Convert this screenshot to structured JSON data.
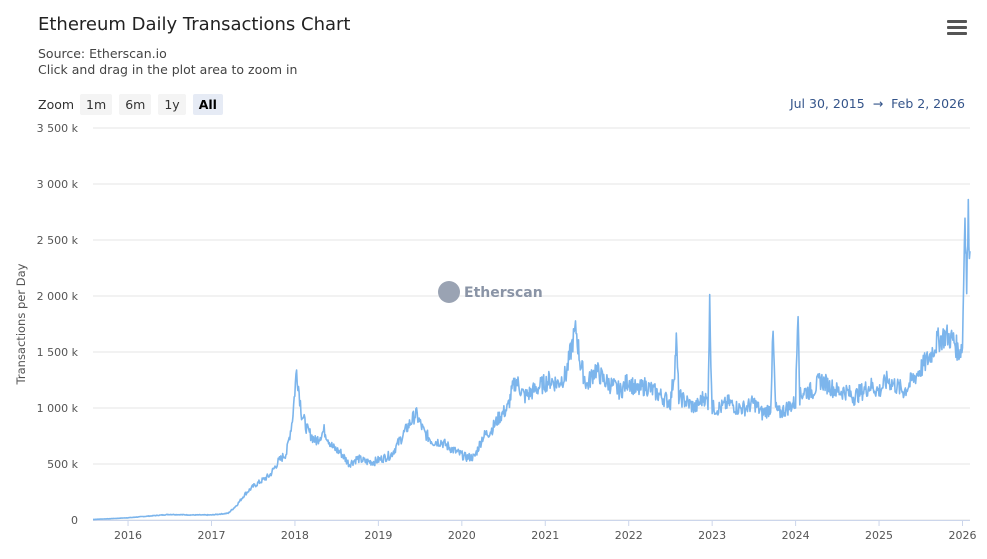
{
  "header": {
    "title": "Ethereum Daily Transactions Chart",
    "source": "Source: Etherscan.io",
    "hint": "Click and drag in the plot area to zoom in"
  },
  "zoom": {
    "label": "Zoom",
    "buttons": [
      "1m",
      "6m",
      "1y",
      "All"
    ],
    "active": "All"
  },
  "range": {
    "from": "Jul 30, 2015",
    "arrow": "→",
    "to": "Feb 2, 2026"
  },
  "watermark": "Etherscan",
  "colors": {
    "series": "#7cb5ec",
    "grid": "#e6e6e6",
    "accent": "#34548a"
  },
  "chart_data": {
    "type": "line",
    "title": "Ethereum Daily Transactions Chart",
    "xlabel": "",
    "ylabel": "Transactions per Day",
    "ylim": [
      0,
      3500000
    ],
    "xlim": [
      2015.58,
      2026.09
    ],
    "yticks": [
      0,
      500000,
      1000000,
      1500000,
      2000000,
      2500000,
      3000000,
      3500000
    ],
    "ytick_labels": [
      "0",
      "500 k",
      "1 000 k",
      "1 500 k",
      "2 000 k",
      "2 500 k",
      "3 000 k",
      "3 500 k"
    ],
    "xticks": [
      2016,
      2017,
      2018,
      2019,
      2020,
      2021,
      2022,
      2023,
      2024,
      2025,
      2026
    ],
    "xtick_labels": [
      "2016",
      "2017",
      "2018",
      "2019",
      "2020",
      "2021",
      "2022",
      "2023",
      "2024",
      "2025",
      "2026"
    ],
    "grid": true,
    "legend": false,
    "series": [
      {
        "x": [
          2015.58,
          2015.8,
          2016.0,
          2016.25,
          2016.5,
          2016.75,
          2017.0,
          2017.2,
          2017.3,
          2017.4,
          2017.5,
          2017.6,
          2017.7,
          2017.8,
          2017.9,
          2017.97,
          2018.02,
          2018.08,
          2018.15,
          2018.25,
          2018.35,
          2018.45,
          2018.55,
          2018.65,
          2018.75,
          2018.85,
          2018.95,
          2019.05,
          2019.15,
          2019.25,
          2019.35,
          2019.45,
          2019.55,
          2019.65,
          2019.75,
          2019.85,
          2019.95,
          2020.05,
          2020.15,
          2020.25,
          2020.35,
          2020.45,
          2020.55,
          2020.6,
          2020.65,
          2020.75,
          2020.85,
          2020.95,
          2021.05,
          2021.15,
          2021.25,
          2021.33,
          2021.37,
          2021.42,
          2021.5,
          2021.6,
          2021.7,
          2021.8,
          2021.9,
          2022.0,
          2022.1,
          2022.2,
          2022.3,
          2022.4,
          2022.5,
          2022.55,
          2022.57,
          2022.6,
          2022.7,
          2022.8,
          2022.9,
          2022.95,
          2022.97,
          2023.0,
          2023.1,
          2023.2,
          2023.3,
          2023.4,
          2023.5,
          2023.6,
          2023.7,
          2023.73,
          2023.76,
          2023.8,
          2023.9,
          2024.0,
          2024.03,
          2024.05,
          2024.1,
          2024.2,
          2024.3,
          2024.4,
          2024.5,
          2024.6,
          2024.7,
          2024.8,
          2024.9,
          2025.0,
          2025.1,
          2025.2,
          2025.3,
          2025.4,
          2025.5,
          2025.6,
          2025.7,
          2025.8,
          2025.9,
          2025.95,
          2026.0,
          2026.03,
          2026.05,
          2026.07,
          2026.09
        ],
        "y": [
          5000,
          12000,
          20000,
          35000,
          50000,
          45000,
          45000,
          60000,
          130000,
          230000,
          300000,
          350000,
          400000,
          520000,
          600000,
          900000,
          1340000,
          950000,
          800000,
          700000,
          800000,
          650000,
          600000,
          500000,
          550000,
          520000,
          520000,
          550000,
          580000,
          700000,
          830000,
          950000,
          780000,
          700000,
          700000,
          650000,
          600000,
          560000,
          560000,
          740000,
          800000,
          920000,
          1000000,
          1150000,
          1250000,
          1100000,
          1150000,
          1200000,
          1250000,
          1220000,
          1300000,
          1600000,
          1700000,
          1400000,
          1200000,
          1350000,
          1250000,
          1200000,
          1150000,
          1250000,
          1150000,
          1200000,
          1150000,
          1100000,
          1050000,
          1350000,
          1600000,
          1100000,
          1050000,
          1000000,
          1100000,
          1050000,
          1920000,
          1000000,
          1000000,
          1050000,
          1000000,
          1000000,
          1050000,
          950000,
          1000000,
          1650000,
          1000000,
          950000,
          1000000,
          1050000,
          1950000,
          1100000,
          1150000,
          1150000,
          1250000,
          1200000,
          1150000,
          1150000,
          1100000,
          1150000,
          1200000,
          1150000,
          1250000,
          1200000,
          1150000,
          1250000,
          1350000,
          1450000,
          1600000,
          1650000,
          1600000,
          1500000,
          1550000,
          2800000,
          2100000,
          2700000,
          2400000
        ]
      }
    ]
  }
}
